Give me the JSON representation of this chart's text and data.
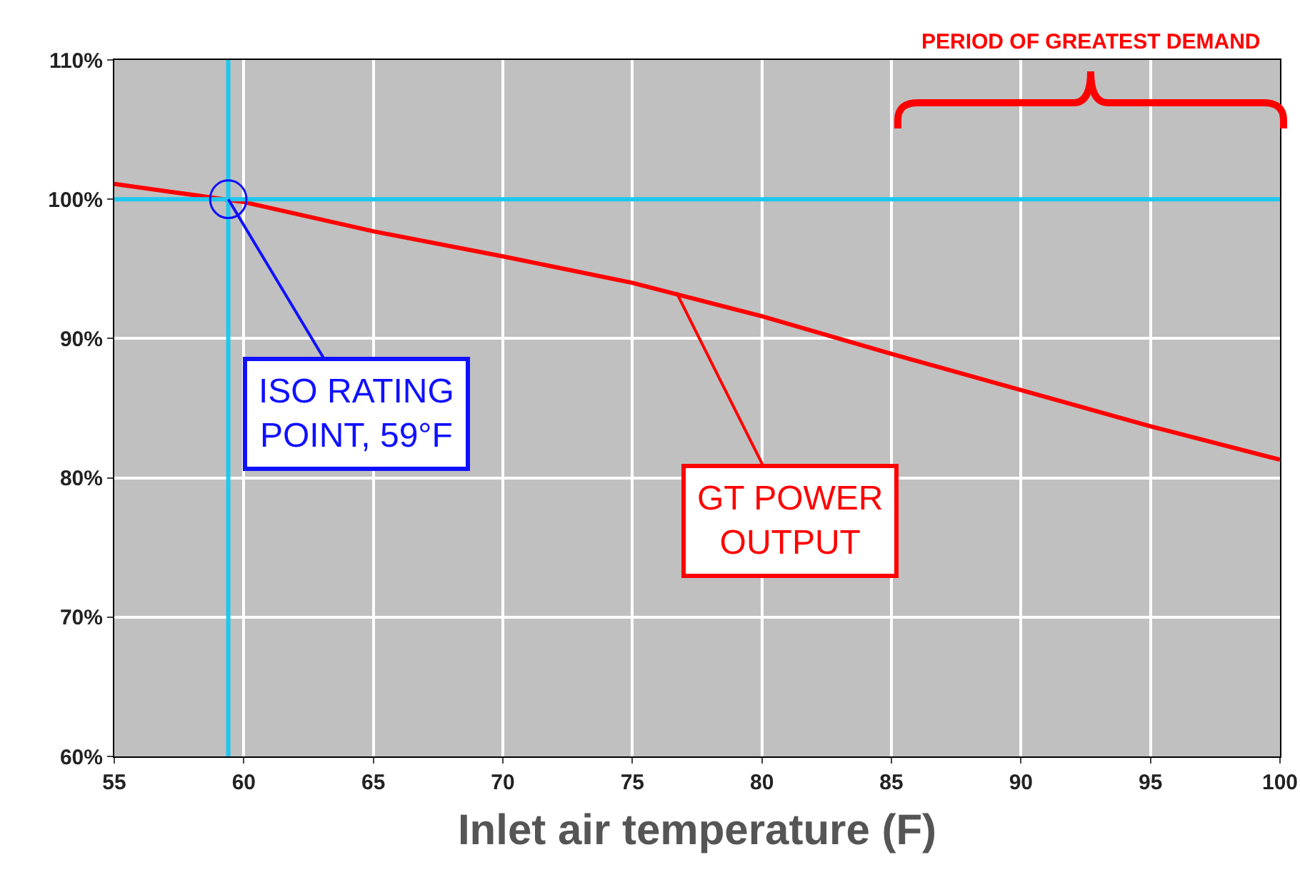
{
  "chart_data": {
    "type": "line",
    "xlabel": "Inlet air temperature (F)",
    "x": [
      55,
      60,
      65,
      70,
      75,
      80,
      85,
      90,
      95,
      100
    ],
    "series": [
      {
        "color": "#ff0000",
        "values": [
          101.1,
          99.8,
          97.7,
          95.9,
          94.0,
          91.6,
          88.9,
          86.3,
          83.7,
          81.3
        ]
      }
    ],
    "xlim": [
      55,
      100
    ],
    "xticks": [
      55,
      60,
      65,
      70,
      75,
      80,
      85,
      90,
      95,
      100
    ],
    "ylim": [
      60,
      110
    ],
    "yticks": [
      {
        "value": 60,
        "label": "60%"
      },
      {
        "value": 70,
        "label": "70%"
      },
      {
        "value": 80,
        "label": "80%"
      },
      {
        "value": 90,
        "label": "90%"
      },
      {
        "value": 100,
        "label": "100%"
      },
      {
        "value": 110,
        "label": "110%"
      }
    ],
    "grid": true,
    "marker": "none",
    "line_style": "solid",
    "ref_lines": [
      {
        "axis": "x",
        "value": 59.4,
        "color": "#1ec8f0"
      },
      {
        "axis": "y",
        "value": 100,
        "color": "#1ec8f0"
      }
    ],
    "annotations": [
      {
        "text": "ISO RATING POINT, 59°F",
        "x": 59.4,
        "y": 100
      },
      {
        "text": "GT POWER OUTPUT",
        "x": 76.7,
        "y": 93.3
      },
      "PERIOD OF GREATEST DEMAND"
    ]
  }
}
